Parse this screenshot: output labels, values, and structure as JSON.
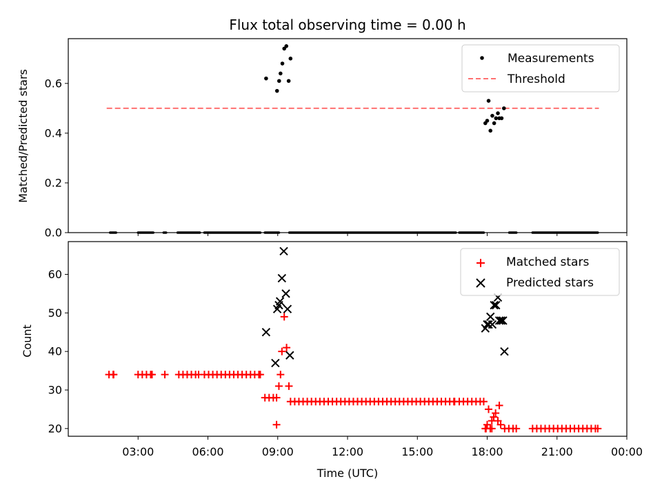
{
  "chart_data": [
    {
      "type": "scatter",
      "title": "Flux total observing time = 0.00 h",
      "xlabel": "",
      "ylabel": "Matched/Predicted stars",
      "ylim": [
        0,
        0.78
      ],
      "yticks": [
        "0.0",
        "0.2",
        "0.4",
        "0.6"
      ],
      "legend": {
        "placement": "top-right",
        "entries": [
          "Measurements",
          "Threshold"
        ]
      },
      "threshold": {
        "name": "Threshold",
        "y": 0.5,
        "x_start": 1.65,
        "x_end": 22.8,
        "color": "#ff7070"
      },
      "series": [
        {
          "name": "Measurements",
          "color": "#000000",
          "points": [
            [
              8.5,
              0.62
            ],
            [
              8.97,
              0.57
            ],
            [
              9.06,
              0.61
            ],
            [
              9.12,
              0.64
            ],
            [
              9.2,
              0.68
            ],
            [
              9.28,
              0.74
            ],
            [
              9.37,
              0.75
            ],
            [
              9.47,
              0.61
            ],
            [
              9.55,
              0.7
            ],
            [
              17.92,
              0.44
            ],
            [
              18.0,
              0.45
            ],
            [
              18.06,
              0.53
            ],
            [
              18.14,
              0.41
            ],
            [
              18.22,
              0.47
            ],
            [
              18.3,
              0.44
            ],
            [
              18.38,
              0.46
            ],
            [
              18.46,
              0.48
            ],
            [
              18.52,
              0.46
            ],
            [
              18.62,
              0.46
            ],
            [
              18.72,
              0.5
            ]
          ],
          "zero_runs": [
            [
              1.8,
              2.05
            ],
            [
              3.0,
              3.65
            ],
            [
              4.1,
              4.2
            ],
            [
              4.7,
              5.65
            ],
            [
              5.85,
              8.25
            ],
            [
              8.45,
              9.05
            ],
            [
              9.5,
              16.65
            ],
            [
              16.8,
              17.85
            ],
            [
              18.95,
              19.25
            ],
            [
              19.95,
              22.75
            ]
          ]
        }
      ]
    },
    {
      "type": "scatter",
      "title": "",
      "xlabel": "Time (UTC)",
      "ylabel": "Count",
      "xlim": [
        0,
        24
      ],
      "ylim": [
        18,
        68.5
      ],
      "yticks": [
        "20",
        "30",
        "40",
        "50",
        "60"
      ],
      "xticks": [
        "03:00",
        "06:00",
        "09:00",
        "12:00",
        "15:00",
        "18:00",
        "21:00",
        "00:00"
      ],
      "legend": {
        "placement": "top-right",
        "entries": [
          "Matched stars",
          "Predicted stars"
        ]
      },
      "series": [
        {
          "name": "Matched stars",
          "color": "#ff0000",
          "marker": "plus",
          "runs": [
            {
              "x": [
                1.75,
                1.95
              ],
              "y": 34
            },
            {
              "x": [
                3.0,
                3.6
              ],
              "y": 34
            },
            {
              "x": [
                4.15,
                4.15
              ],
              "y": 34
            },
            {
              "x": [
                4.75,
                5.6
              ],
              "y": 34
            },
            {
              "x": [
                5.85,
                8.25
              ],
              "y": 34
            },
            {
              "x": [
                8.45,
                8.95
              ],
              "y": 28
            },
            {
              "x": [
                9.55,
                16.6
              ],
              "y": 27
            },
            {
              "x": [
                16.8,
                17.85
              ],
              "y": 27
            },
            {
              "x": [
                17.95,
                18.2
              ],
              "y": 20
            },
            {
              "x": [
                18.75,
                19.25
              ],
              "y": 20
            },
            {
              "x": [
                19.95,
                22.75
              ],
              "y": 20
            }
          ],
          "points": [
            [
              8.95,
              21
            ],
            [
              9.05,
              31
            ],
            [
              9.12,
              34
            ],
            [
              9.18,
              40
            ],
            [
              9.28,
              49
            ],
            [
              9.38,
              41
            ],
            [
              9.48,
              31
            ],
            [
              17.92,
              20
            ],
            [
              18.0,
              21
            ],
            [
              18.06,
              25
            ],
            [
              18.2,
              22
            ],
            [
              18.28,
              23
            ],
            [
              18.36,
              24
            ],
            [
              18.46,
              22
            ],
            [
              18.52,
              26
            ],
            [
              18.58,
              21
            ]
          ]
        },
        {
          "name": "Predicted stars",
          "color": "#000000",
          "marker": "x",
          "points": [
            [
              8.5,
              45
            ],
            [
              8.9,
              37
            ],
            [
              8.98,
              51
            ],
            [
              9.05,
              52
            ],
            [
              9.1,
              53
            ],
            [
              9.18,
              59
            ],
            [
              9.26,
              66
            ],
            [
              9.35,
              55
            ],
            [
              9.42,
              51
            ],
            [
              9.52,
              39
            ],
            [
              17.92,
              46
            ],
            [
              18.0,
              47
            ],
            [
              18.06,
              47
            ],
            [
              18.14,
              49
            ],
            [
              18.22,
              47
            ],
            [
              18.3,
              52
            ],
            [
              18.38,
              52
            ],
            [
              18.46,
              54
            ],
            [
              18.52,
              48
            ],
            [
              18.6,
              48
            ],
            [
              18.68,
              48
            ],
            [
              18.74,
              40
            ]
          ]
        }
      ]
    }
  ]
}
